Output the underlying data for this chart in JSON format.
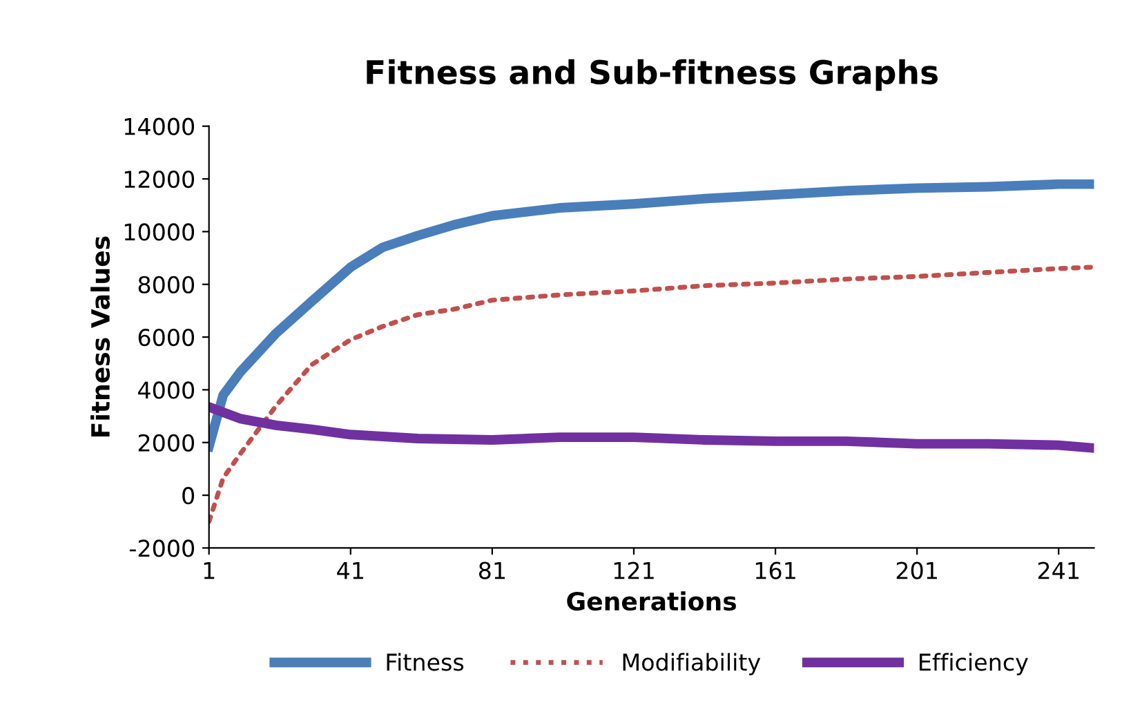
{
  "chart_data": {
    "type": "line",
    "title": "Fitness and Sub-fitness Graphs",
    "xlabel": "Generations",
    "ylabel": "Fitness Values",
    "xlim": [
      1,
      251
    ],
    "xticks": [
      1,
      41,
      81,
      121,
      161,
      201,
      241
    ],
    "ylim": [
      -2000,
      14000
    ],
    "yticks": [
      -2000,
      0,
      2000,
      4000,
      6000,
      8000,
      10000,
      12000,
      14000
    ],
    "grid": false,
    "legend": "bottom",
    "series": [
      {
        "name": "Fitness",
        "color": "#4a7ebb",
        "line_style": "solid",
        "x": [
          1,
          5,
          10,
          20,
          30,
          41,
          50,
          60,
          70,
          81,
          100,
          121,
          141,
          161,
          181,
          201,
          221,
          241,
          250
        ],
        "values": [
          1850,
          3800,
          4700,
          6150,
          7350,
          8650,
          9400,
          9850,
          10250,
          10600,
          10900,
          11050,
          11250,
          11400,
          11550,
          11650,
          11700,
          11800,
          11800
        ]
      },
      {
        "name": "Modifiability",
        "color": "#c0504d",
        "line_style": "dotted",
        "x": [
          1,
          5,
          10,
          20,
          30,
          41,
          50,
          60,
          70,
          81,
          100,
          121,
          141,
          161,
          181,
          201,
          221,
          241,
          250
        ],
        "values": [
          -1000,
          650,
          1600,
          3400,
          4950,
          5900,
          6400,
          6850,
          7050,
          7400,
          7600,
          7750,
          7950,
          8050,
          8200,
          8300,
          8450,
          8600,
          8650
        ]
      },
      {
        "name": "Efficiency",
        "color": "#7030a0",
        "line_style": "solid",
        "x": [
          1,
          10,
          20,
          30,
          41,
          60,
          81,
          100,
          121,
          141,
          161,
          181,
          201,
          221,
          241,
          250
        ],
        "values": [
          3350,
          2900,
          2650,
          2500,
          2300,
          2150,
          2100,
          2200,
          2200,
          2100,
          2050,
          2050,
          1950,
          1950,
          1900,
          1800
        ]
      }
    ]
  }
}
